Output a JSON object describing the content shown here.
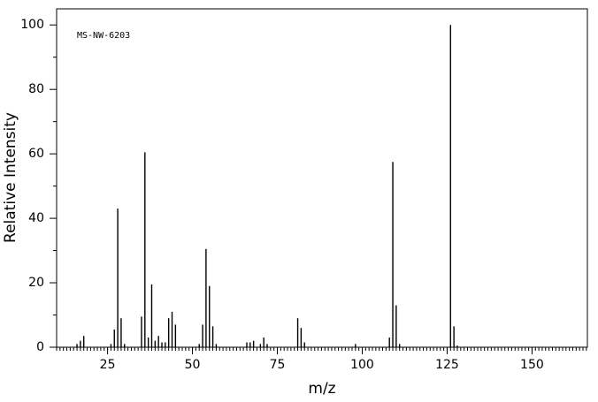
{
  "chart_data": {
    "type": "stem",
    "annotation": "MS-NW-6203",
    "xlabel": "m/z",
    "ylabel": "Relative Intensity",
    "x": [
      16,
      17,
      18,
      26,
      27,
      28,
      29,
      30,
      35,
      36,
      37,
      38,
      39,
      40,
      41,
      42,
      43,
      44,
      45,
      52,
      53,
      54,
      55,
      56,
      57,
      66,
      67,
      68,
      70,
      71,
      72,
      81,
      82,
      83,
      98,
      108,
      109,
      110,
      111,
      126,
      127,
      128
    ],
    "values": [
      1,
      2,
      3.5,
      1,
      5.5,
      43,
      9,
      1,
      9.5,
      60.5,
      3,
      19.5,
      2,
      3.5,
      1.5,
      1.5,
      9,
      11,
      7,
      1,
      7,
      30.5,
      19,
      6.5,
      1,
      1.5,
      1.5,
      2,
      1,
      3,
      1,
      9,
      6,
      1.5,
      1,
      3,
      57.5,
      13,
      1,
      100,
      6.5,
      0.5
    ],
    "color": "#000000",
    "xlim": [
      10,
      166.3
    ],
    "ylim": [
      0,
      105
    ],
    "xticks": [
      25,
      50,
      75,
      100,
      125,
      150
    ],
    "yticks": [
      0,
      20,
      40,
      60,
      80,
      100
    ]
  }
}
